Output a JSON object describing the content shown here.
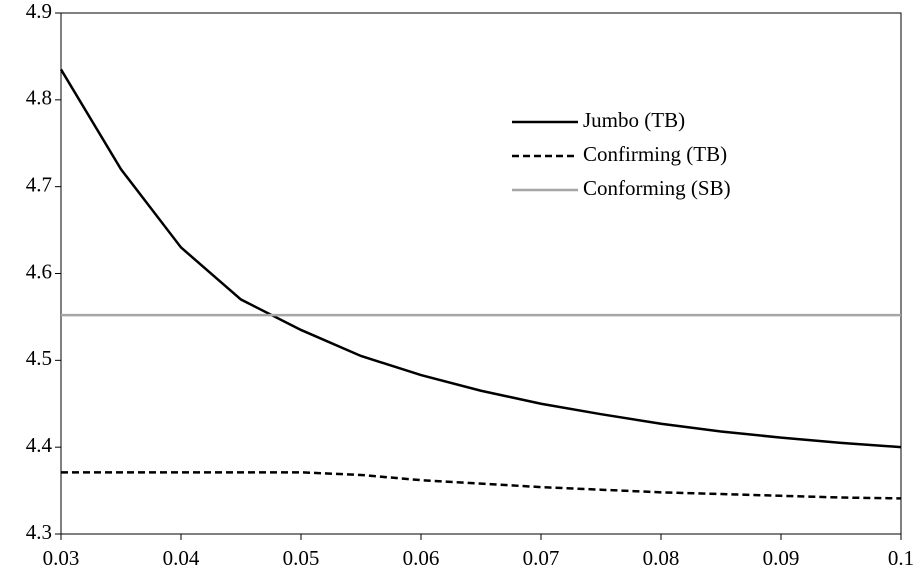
{
  "chart_data": {
    "type": "line",
    "x": [
      0.03,
      0.035,
      0.04,
      0.045,
      0.05,
      0.055,
      0.06,
      0.065,
      0.07,
      0.075,
      0.08,
      0.085,
      0.09,
      0.095,
      0.1
    ],
    "series": [
      {
        "name": "Jumbo (TB)",
        "color": "#000000",
        "style": "solid",
        "values": [
          4.835,
          4.72,
          4.63,
          4.57,
          4.535,
          4.505,
          4.483,
          4.465,
          4.45,
          4.438,
          4.427,
          4.418,
          4.411,
          4.405,
          4.4
        ]
      },
      {
        "name": "Confirming (TB)",
        "color": "#000000",
        "style": "dashed",
        "values": [
          4.371,
          4.371,
          4.371,
          4.371,
          4.371,
          4.368,
          4.362,
          4.358,
          4.354,
          4.351,
          4.348,
          4.346,
          4.344,
          4.342,
          4.341
        ]
      },
      {
        "name": "Conforming (SB)",
        "color": "#a6a6a6",
        "style": "solid",
        "values": [
          4.552,
          4.552,
          4.552,
          4.552,
          4.552,
          4.552,
          4.552,
          4.552,
          4.552,
          4.552,
          4.552,
          4.552,
          4.552,
          4.552,
          4.552
        ]
      }
    ],
    "xlim": [
      0.03,
      0.1
    ],
    "xticks": [
      0.03,
      0.04,
      0.05,
      0.06,
      0.07,
      0.08,
      0.09,
      0.1
    ],
    "ylim": [
      4.3,
      4.9
    ],
    "yticks": [
      4.3,
      4.4,
      4.5,
      4.6,
      4.7,
      4.8,
      4.9
    ],
    "grid": false,
    "legend": "upper right"
  }
}
